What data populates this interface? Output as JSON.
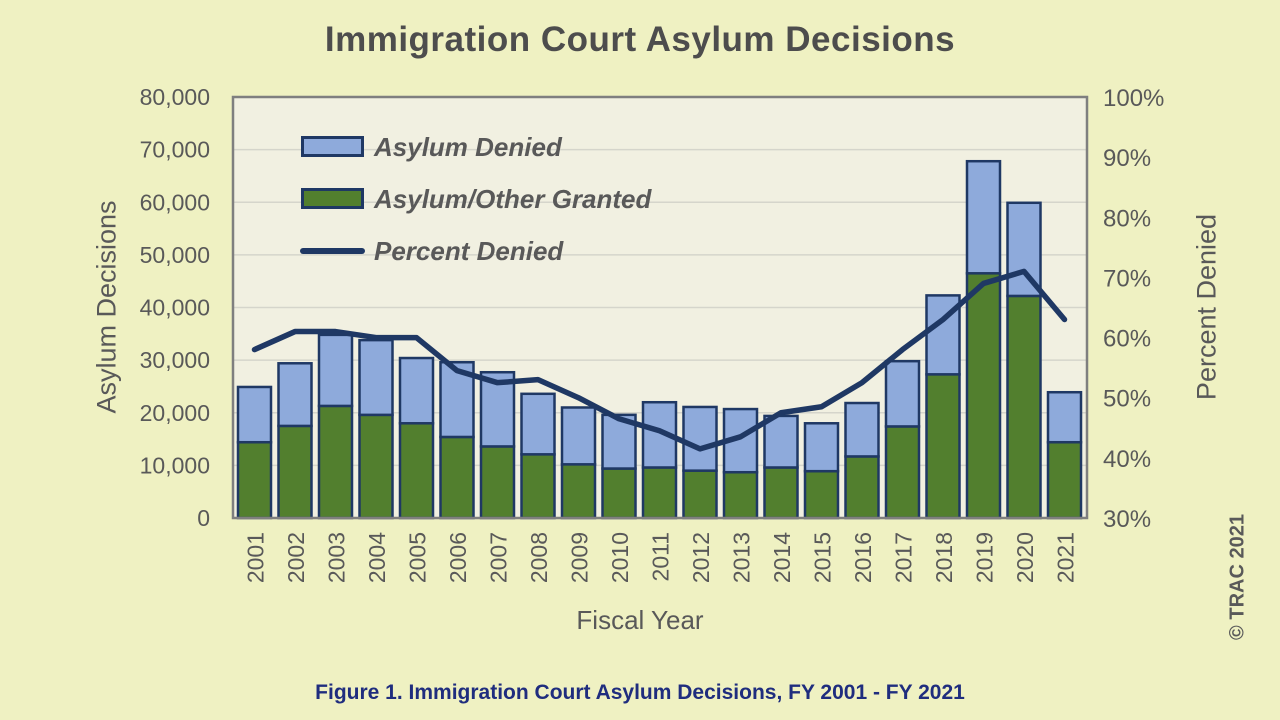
{
  "header": {
    "title": "Immigration Court Asylum Decisions"
  },
  "footer": {
    "caption": "Figure 1. Immigration Court Asylum Decisions, FY 2001 - FY 2021",
    "watermark": "© TRAC 2021"
  },
  "axes": {
    "left": {
      "title": "Asylum Decisions",
      "tick_labels": [
        "0",
        "10,000",
        "20,000",
        "30,000",
        "40,000",
        "50,000",
        "60,000",
        "70,000",
        "80,000"
      ]
    },
    "right": {
      "title": "Percent Denied",
      "tick_labels": [
        "30%",
        "40%",
        "50%",
        "60%",
        "70%",
        "80%",
        "90%",
        "100%"
      ]
    },
    "bottom": {
      "title": "Fiscal Year"
    }
  },
  "legend": {
    "items": [
      {
        "label": "Asylum Denied",
        "marker": "blue-box"
      },
      {
        "label": "Asylum/Other Granted",
        "marker": "green-box"
      },
      {
        "label": "Percent Denied",
        "marker": "navy-line"
      }
    ]
  },
  "colors": {
    "page_background": "#EFF1C2",
    "plot_background": "#F1F0E1",
    "gridline": "#D5D5CB",
    "plot_border": "#7F7F7F",
    "bar_blue_fill": "#8EAADB",
    "bar_green_fill": "#527F2E",
    "navy": "#1F3864",
    "text_gray": "#595959",
    "title_gray": "#4D4D4D",
    "caption_navy": "#1F2D7E"
  },
  "chart_data": {
    "type": "bar",
    "subtype": "stacked-bars-with-line",
    "title": "Immigration Court Asylum Decisions",
    "xlabel": "Fiscal Year",
    "ylabel": "Asylum Decisions",
    "y2label": "Percent Denied",
    "ylim": [
      0,
      80000
    ],
    "y2lim": [
      30,
      100
    ],
    "grid": "horizontal",
    "legend_position": "top-left-inside",
    "categories": [
      "2001",
      "2002",
      "2003",
      "2004",
      "2005",
      "2006",
      "2007",
      "2008",
      "2009",
      "2010",
      "2011",
      "2012",
      "2013",
      "2014",
      "2015",
      "2016",
      "2017",
      "2018",
      "2019",
      "2020",
      "2021"
    ],
    "series": [
      {
        "name": "Asylum/Other Granted",
        "type": "bar",
        "stack_position": "bottom",
        "color": "#527F2E",
        "values": [
          14400,
          17500,
          21300,
          19600,
          18000,
          15400,
          13600,
          12100,
          10200,
          9400,
          9600,
          9000,
          8700,
          9600,
          8900,
          11700,
          17400,
          27300,
          46500,
          42200,
          14400
        ]
      },
      {
        "name": "Asylum Denied",
        "type": "bar",
        "stack_position": "top",
        "color": "#8EAADB",
        "values": [
          10500,
          11900,
          13500,
          14200,
          12400,
          14200,
          14100,
          11500,
          10800,
          10200,
          12400,
          12100,
          12000,
          9800,
          9100,
          10150,
          12400,
          15000,
          21300,
          17700,
          9500
        ]
      },
      {
        "name": "Percent Denied",
        "type": "line",
        "axis": "right",
        "color": "#1F3864",
        "values": [
          58,
          61,
          61,
          60,
          60,
          54.5,
          52.5,
          53,
          50,
          46.5,
          44.5,
          41.5,
          43.5,
          47.5,
          48.5,
          52.5,
          58,
          63,
          69,
          71,
          63
        ]
      }
    ]
  }
}
